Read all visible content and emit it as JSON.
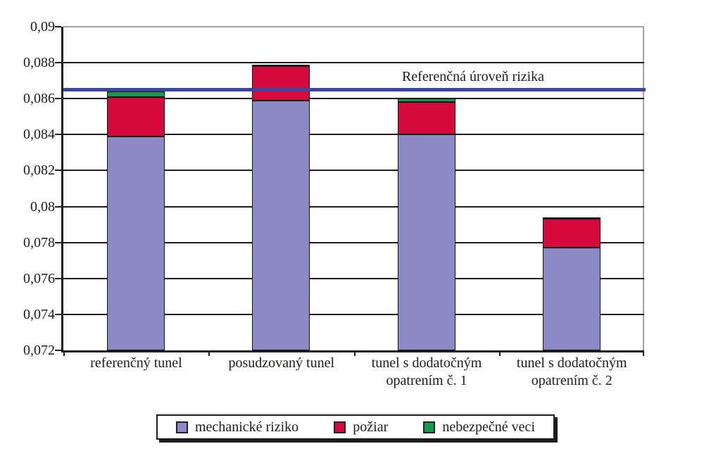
{
  "chart_data": {
    "type": "bar",
    "subtype": "stacked-vertical",
    "title": "",
    "xlabel": "",
    "ylabel": "",
    "categories": [
      "referenčný tunel",
      "posudzovaný tunel",
      "tunel s dodatočným opatrením č. 1",
      "tunel s dodatočným opatrením č. 2"
    ],
    "series": [
      {
        "name": "mechanické riziko",
        "color": "#8B89C6",
        "values": [
          0.0839,
          0.0859,
          0.084,
          0.0777
        ]
      },
      {
        "name": "požiar",
        "color": "#D40A3C",
        "values": [
          0.0022,
          0.0019,
          0.0018,
          0.0016
        ]
      },
      {
        "name": "nebezpečné veci",
        "color": "#149B4D",
        "values": [
          0.0003,
          0.0001,
          0.0002,
          0.0001
        ]
      }
    ],
    "stack_totals": [
      0.0864,
      0.0879,
      0.086,
      0.0794
    ],
    "reference_line": {
      "label": "Referenčná úroveň rizika",
      "value": 0.0865,
      "color": "#3B46A0"
    },
    "y_axis": {
      "min": 0.072,
      "max": 0.09,
      "tick_step": 0.002,
      "tick_labels": [
        "0,09",
        "0,088",
        "0,086",
        "0,084",
        "0,082",
        "0,08",
        "0,078",
        "0,076",
        "0,074",
        "0,072"
      ]
    },
    "grid": true,
    "legend_position": "bottom",
    "colors": {
      "gridline": "#1c1c1c",
      "plot_border": "#a3a3a3",
      "text": "#1c1c1c",
      "background": "#ffffff"
    }
  }
}
